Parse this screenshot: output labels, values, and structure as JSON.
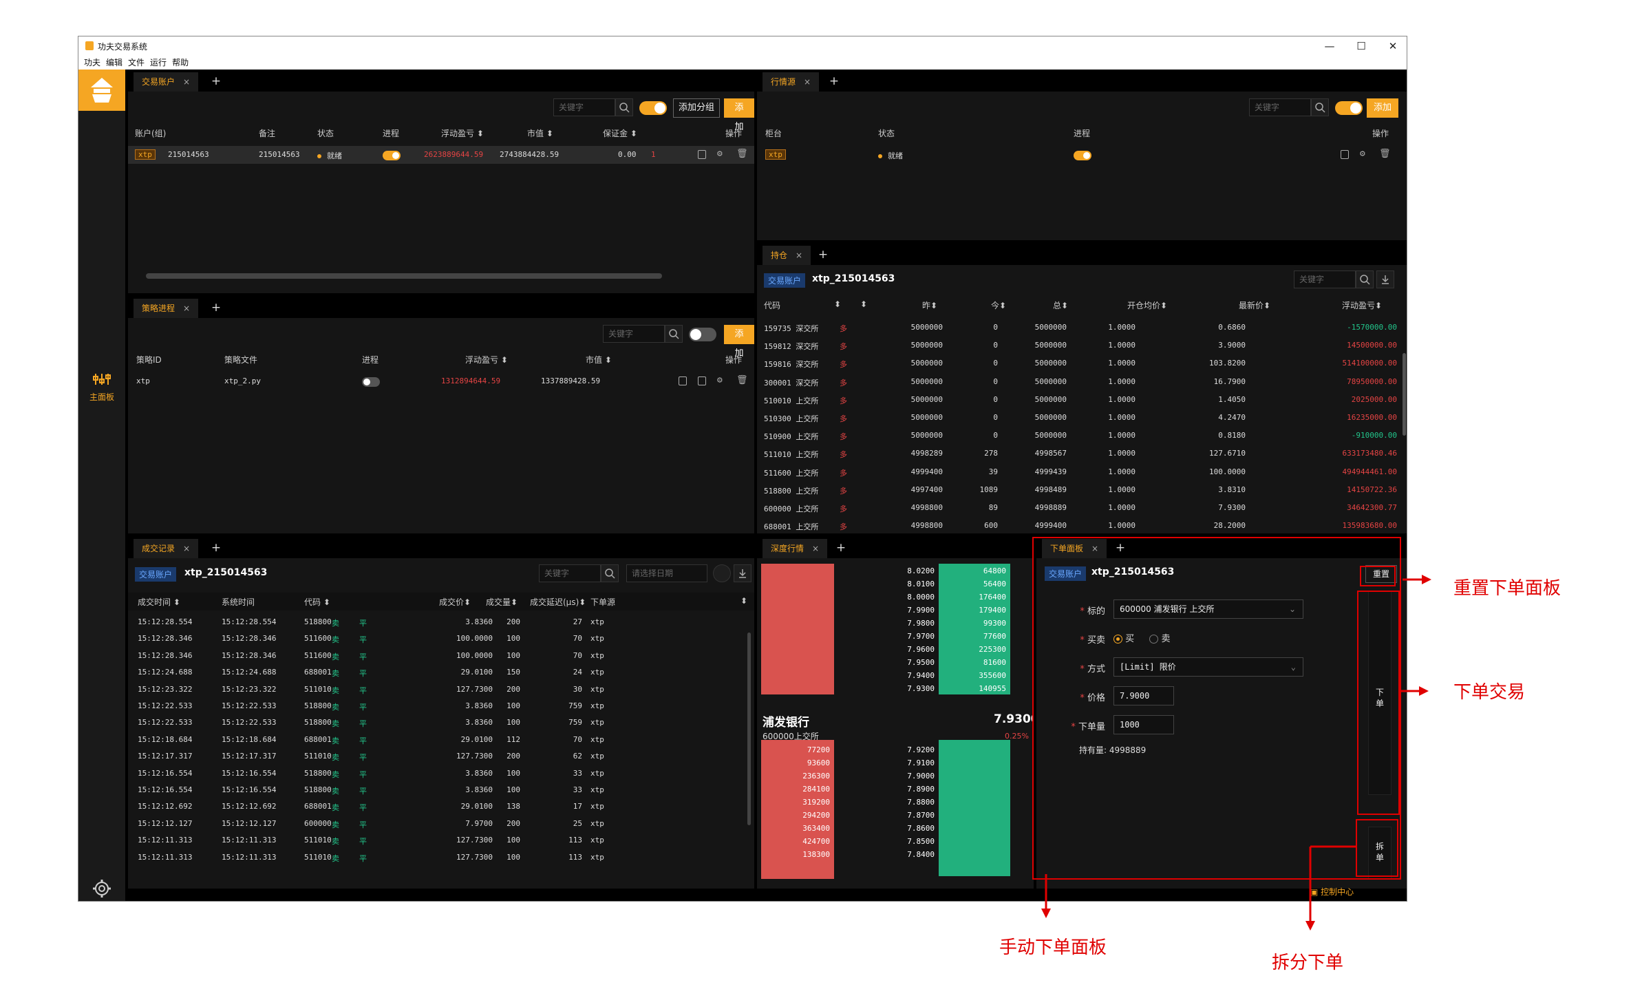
{
  "app": {
    "title": "功夫交易系统",
    "menu": [
      "功夫",
      "编辑",
      "文件",
      "运行",
      "帮助"
    ],
    "win_min": "—",
    "win_max": "☐",
    "win_close": "✕"
  },
  "sidebar": {
    "main_label": "主面板"
  },
  "common": {
    "keyword_placeholder": "关键字",
    "add": "添加",
    "add_group": "添加分组",
    "tab_close": "×",
    "tab_add": "+",
    "account_tag": "交易账户"
  },
  "accounts": {
    "tab": "交易账户",
    "headers": [
      "账户(组)",
      "备注",
      "状态",
      "进程",
      "浮动盈亏 ⬍",
      "市值 ⬍",
      "保证金 ⬍",
      "操作"
    ],
    "rows": [
      {
        "tag": "xtp",
        "id": "215014563",
        "note": "215014563",
        "status": "就绪",
        "pnl": "2623889644.59",
        "mv": "2743884428.59",
        "margin": "0.00",
        "extra": "1"
      }
    ]
  },
  "market": {
    "tab": "行情源",
    "headers": [
      "柜台",
      "状态",
      "进程",
      "操作"
    ],
    "rows": [
      {
        "tag": "xtp",
        "status": "就绪"
      }
    ]
  },
  "strategy": {
    "tab": "策略进程",
    "headers": [
      "策略ID",
      "策略文件",
      "进程",
      "浮动盈亏 ⬍",
      "市值 ⬍",
      "操作"
    ],
    "rows": [
      {
        "id": "xtp",
        "file": "xtp_2.py",
        "pnl": "1312894644.59",
        "mv": "1337889428.59"
      }
    ]
  },
  "positions": {
    "tab": "持仓",
    "account": "xtp_215014563",
    "headers": [
      "代码",
      "⬍",
      "⬍",
      "昨⬍",
      "今⬍",
      "总⬍",
      "开仓均价⬍",
      "最新价⬍",
      "浮动盈亏⬍"
    ],
    "rows": [
      [
        "159735 深交所",
        "多",
        "5000000",
        "0",
        "5000000",
        "1.0000",
        "0.6860",
        "-1570000.00"
      ],
      [
        "159812 深交所",
        "多",
        "5000000",
        "0",
        "5000000",
        "1.0000",
        "3.9000",
        "14500000.00"
      ],
      [
        "159816 深交所",
        "多",
        "5000000",
        "0",
        "5000000",
        "1.0000",
        "103.8200",
        "514100000.00"
      ],
      [
        "300001 深交所",
        "多",
        "5000000",
        "0",
        "5000000",
        "1.0000",
        "16.7900",
        "78950000.00"
      ],
      [
        "510010 上交所",
        "多",
        "5000000",
        "0",
        "5000000",
        "1.0000",
        "1.4050",
        "2025000.00"
      ],
      [
        "510300 上交所",
        "多",
        "5000000",
        "0",
        "5000000",
        "1.0000",
        "4.2470",
        "16235000.00"
      ],
      [
        "510900 上交所",
        "多",
        "5000000",
        "0",
        "5000000",
        "1.0000",
        "0.8180",
        "-910000.00"
      ],
      [
        "511010 上交所",
        "多",
        "4998289",
        "278",
        "4998567",
        "1.0000",
        "127.6710",
        "633173480.46"
      ],
      [
        "511600 上交所",
        "多",
        "4999400",
        "39",
        "4999439",
        "1.0000",
        "100.0000",
        "494944461.00"
      ],
      [
        "518800 上交所",
        "多",
        "4997400",
        "1089",
        "4998489",
        "1.0000",
        "3.8310",
        "14150722.36"
      ],
      [
        "600000 上交所",
        "多",
        "4998800",
        "89",
        "4998889",
        "1.0000",
        "7.9300",
        "34642300.77"
      ],
      [
        "688001 上交所",
        "多",
        "4998800",
        "600",
        "4999400",
        "1.0000",
        "28.2000",
        "135983680.00"
      ]
    ]
  },
  "trades": {
    "tab": "成交记录",
    "account": "xtp_215014563",
    "date_placeholder": "请选择日期",
    "headers": [
      "成交时间 ⬍",
      "系统时间",
      "代码 ⬍",
      "",
      "",
      "成交价⬍",
      "成交量⬍",
      "成交延迟(μs)⬍",
      "下单源",
      "⬍"
    ],
    "rows": [
      [
        "15:12:28.554",
        "15:12:28.554",
        "518800",
        "卖",
        "平",
        "3.8360",
        "200",
        "27",
        "xtp"
      ],
      [
        "15:12:28.346",
        "15:12:28.346",
        "511600",
        "卖",
        "平",
        "100.0000",
        "100",
        "70",
        "xtp"
      ],
      [
        "15:12:28.346",
        "15:12:28.346",
        "511600",
        "卖",
        "平",
        "100.0000",
        "100",
        "70",
        "xtp"
      ],
      [
        "15:12:24.688",
        "15:12:24.688",
        "688001",
        "卖",
        "平",
        "29.0100",
        "150",
        "24",
        "xtp"
      ],
      [
        "15:12:23.322",
        "15:12:23.322",
        "511010",
        "卖",
        "平",
        "127.7300",
        "200",
        "30",
        "xtp"
      ],
      [
        "15:12:22.533",
        "15:12:22.533",
        "518800",
        "卖",
        "平",
        "3.8360",
        "100",
        "759",
        "xtp"
      ],
      [
        "15:12:22.533",
        "15:12:22.533",
        "518800",
        "卖",
        "平",
        "3.8360",
        "100",
        "759",
        "xtp"
      ],
      [
        "15:12:18.684",
        "15:12:18.684",
        "688001",
        "卖",
        "平",
        "29.0100",
        "112",
        "70",
        "xtp"
      ],
      [
        "15:12:17.317",
        "15:12:17.317",
        "511010",
        "卖",
        "平",
        "127.7300",
        "200",
        "62",
        "xtp"
      ],
      [
        "15:12:16.554",
        "15:12:16.554",
        "518800",
        "卖",
        "平",
        "3.8360",
        "100",
        "33",
        "xtp"
      ],
      [
        "15:12:16.554",
        "15:12:16.554",
        "518800",
        "卖",
        "平",
        "3.8360",
        "100",
        "33",
        "xtp"
      ],
      [
        "15:12:12.692",
        "15:12:12.692",
        "688001",
        "卖",
        "平",
        "29.0100",
        "138",
        "17",
        "xtp"
      ],
      [
        "15:12:12.127",
        "15:12:12.127",
        "600000",
        "卖",
        "平",
        "7.9700",
        "200",
        "25",
        "xtp"
      ],
      [
        "15:12:11.313",
        "15:12:11.313",
        "511010",
        "卖",
        "平",
        "127.7300",
        "100",
        "113",
        "xtp"
      ],
      [
        "15:12:11.313",
        "15:12:11.313",
        "511010",
        "卖",
        "平",
        "127.7300",
        "100",
        "113",
        "xtp"
      ]
    ]
  },
  "depth": {
    "tab": "深度行情",
    "name": "浦发银行",
    "price": "7.9300",
    "code": "600000上交所",
    "change": "0.25%",
    "asks": [
      [
        "8.0200",
        "64800"
      ],
      [
        "8.0100",
        "56400"
      ],
      [
        "8.0000",
        "176400"
      ],
      [
        "7.9900",
        "179400"
      ],
      [
        "7.9800",
        "99300"
      ],
      [
        "7.9700",
        "77600"
      ],
      [
        "7.9600",
        "225300"
      ],
      [
        "7.9500",
        "81600"
      ],
      [
        "7.9400",
        "355600"
      ],
      [
        "7.9300",
        "140955"
      ]
    ],
    "bids": [
      [
        "7.9200",
        "77200"
      ],
      [
        "7.9100",
        "93600"
      ],
      [
        "7.9000",
        "236300"
      ],
      [
        "7.8900",
        "284100"
      ],
      [
        "7.8800",
        "319200"
      ],
      [
        "7.8700",
        "294200"
      ],
      [
        "7.8600",
        "363400"
      ],
      [
        "7.8500",
        "424700"
      ],
      [
        "7.8400",
        "138300"
      ]
    ]
  },
  "order": {
    "tab": "下单面板",
    "account": "xtp_215014563",
    "reset": "重置",
    "lbl_symbol": "标的",
    "symbol": "600000 浦发银行 上交所",
    "lbl_side": "买卖",
    "buy": "买",
    "sell": "卖",
    "lbl_type": "方式",
    "type": "[Limit] 限价",
    "lbl_price": "价格",
    "price": "7.9000",
    "lbl_qty": "下单量",
    "qty": "1000",
    "holding": "持有量: 4998889",
    "submit": "下单",
    "split": "拆单"
  },
  "footer": {
    "control_center": "控制中心"
  },
  "annotations": {
    "reset_panel": "重置下单面板",
    "place_order": "下单交易",
    "manual_panel": "手动下单面板",
    "split_order": "拆分下单"
  },
  "colors": {
    "accent": "#f5a623",
    "red": "#e54444",
    "green": "#22c58b",
    "annotation": "#e00000"
  }
}
